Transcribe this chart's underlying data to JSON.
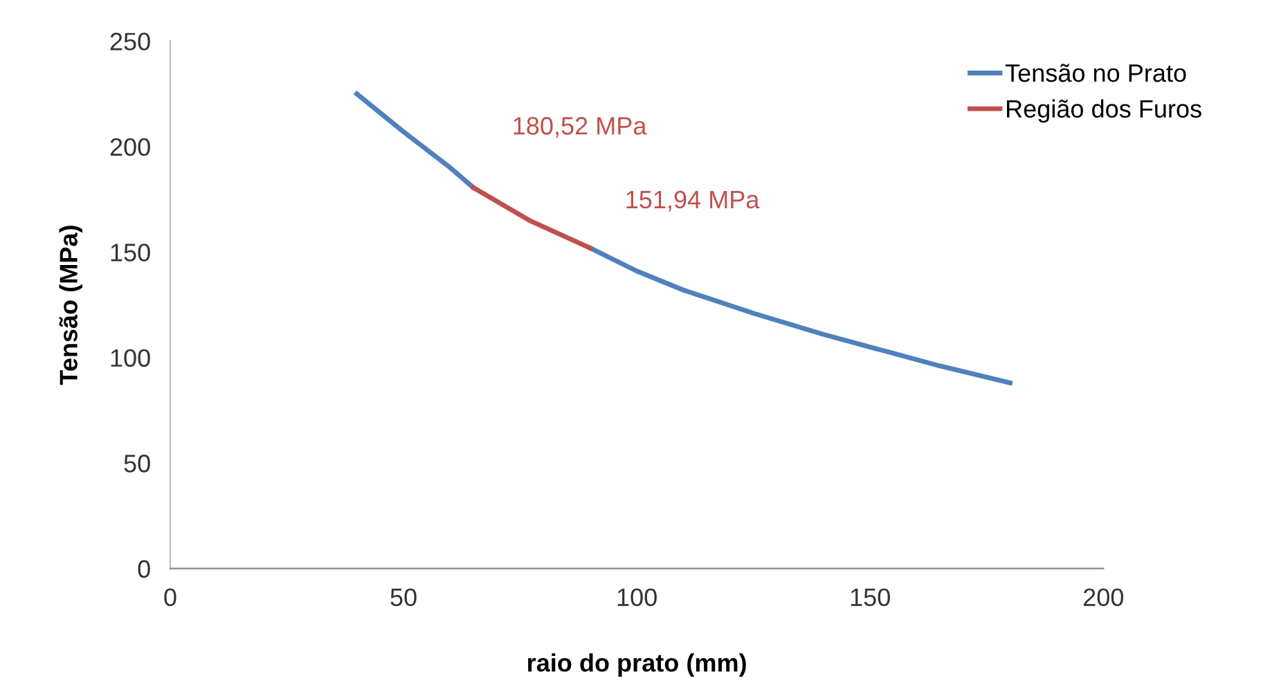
{
  "chart_data": {
    "type": "line",
    "xlabel": "raio do prato (mm)",
    "ylabel": "Tensão (MPa)",
    "xlim": [
      0,
      200
    ],
    "xticks": [
      0,
      50,
      100,
      150,
      200
    ],
    "ylim": [
      0,
      250
    ],
    "yticks": [
      0,
      50,
      100,
      150,
      200,
      250
    ],
    "series": [
      {
        "name": "Tensão no Prato",
        "color": "#4f81bd",
        "x": [
          40,
          50,
          60,
          65,
          77,
          90,
          100,
          110,
          125,
          140,
          150,
          165,
          180
        ],
        "values": [
          225,
          207,
          190,
          180.52,
          null,
          151.94,
          141,
          132,
          121,
          111,
          105,
          96,
          88
        ]
      },
      {
        "name": "Região dos Furos",
        "color": "#c0504d",
        "x": [
          65,
          77,
          90
        ],
        "values": [
          180.52,
          165,
          151.94
        ]
      }
    ],
    "annotations": [
      {
        "text": "180,52 MPa",
        "x": 65,
        "y": 180.52
      },
      {
        "text": "151,94 MPa",
        "x": 90,
        "y": 151.94
      }
    ],
    "grid": false,
    "legend": "top right",
    "marker": "none",
    "line_style": "solid"
  }
}
